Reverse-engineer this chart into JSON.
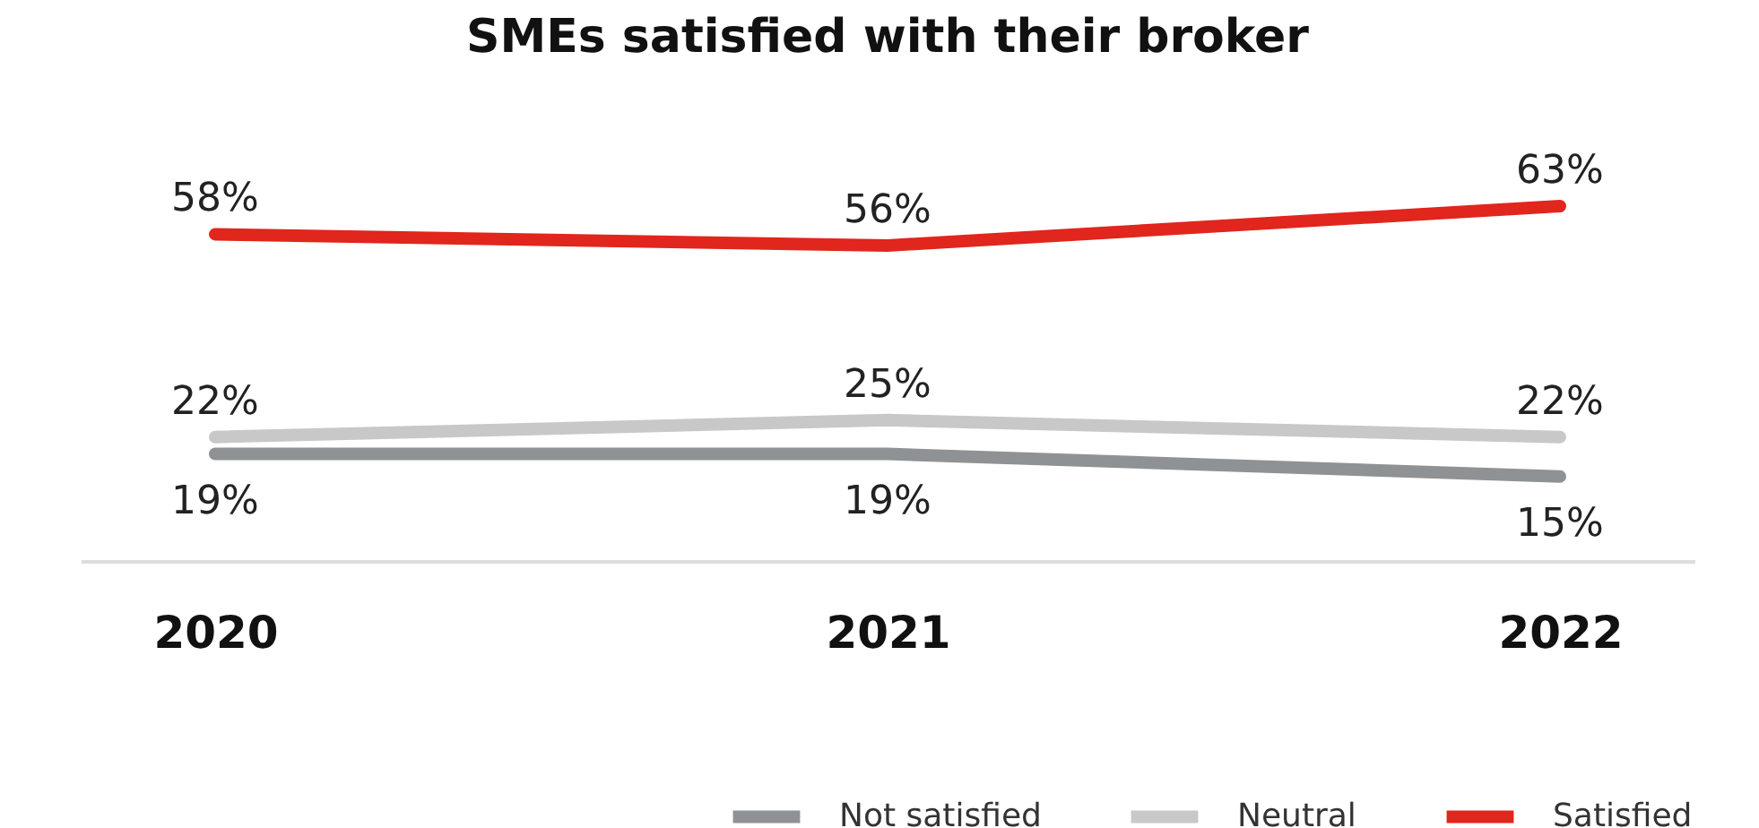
{
  "chart_data": {
    "type": "line",
    "title": "SMEs satisfied with their broker",
    "categories": [
      "2020",
      "2021",
      "2022"
    ],
    "series": [
      {
        "name": "Not satisfied",
        "color": "#8f9294",
        "values": [
          19,
          19,
          15
        ],
        "value_labels": [
          "19%",
          "19%",
          "15%"
        ]
      },
      {
        "name": "Neutral",
        "color": "#c8c8c8",
        "values": [
          22,
          25,
          22
        ],
        "value_labels": [
          "22%",
          "25%",
          "22%"
        ]
      },
      {
        "name": "Satisfied",
        "color": "#e0261d",
        "values": [
          58,
          56,
          63
        ],
        "value_labels": [
          "58%",
          "56%",
          "63%"
        ]
      }
    ],
    "legend": "bottom right",
    "grid": false,
    "marker": "none",
    "line_style": "solid"
  }
}
